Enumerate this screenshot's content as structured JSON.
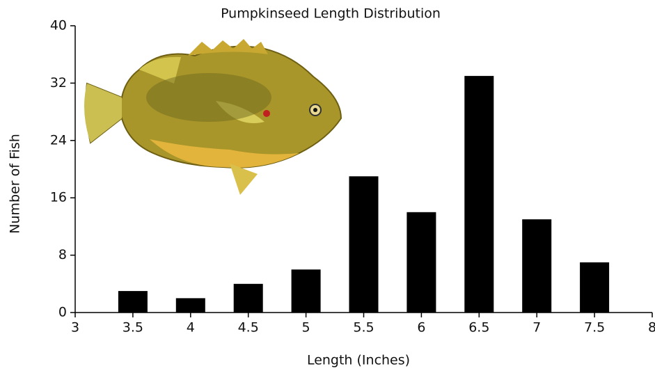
{
  "chart_data": {
    "type": "bar",
    "title": "Pumpkinseed Length Distribution",
    "x_label": "Length (Inches)",
    "y_label": "Number of Fish",
    "x": [
      3.5,
      4,
      4.5,
      5,
      5.5,
      6,
      6.5,
      7,
      7.5
    ],
    "values": [
      3,
      2,
      4,
      6,
      19,
      14,
      33,
      13,
      7
    ],
    "color": "#000000",
    "xlim": [
      3,
      8
    ],
    "xticks": [
      3,
      3.5,
      4,
      4.5,
      5,
      5.5,
      6,
      6.5,
      7,
      7.5,
      8
    ],
    "ylim": [
      0,
      40
    ],
    "yticks": [
      0,
      8,
      16,
      24,
      32,
      40
    ],
    "grid": false
  }
}
